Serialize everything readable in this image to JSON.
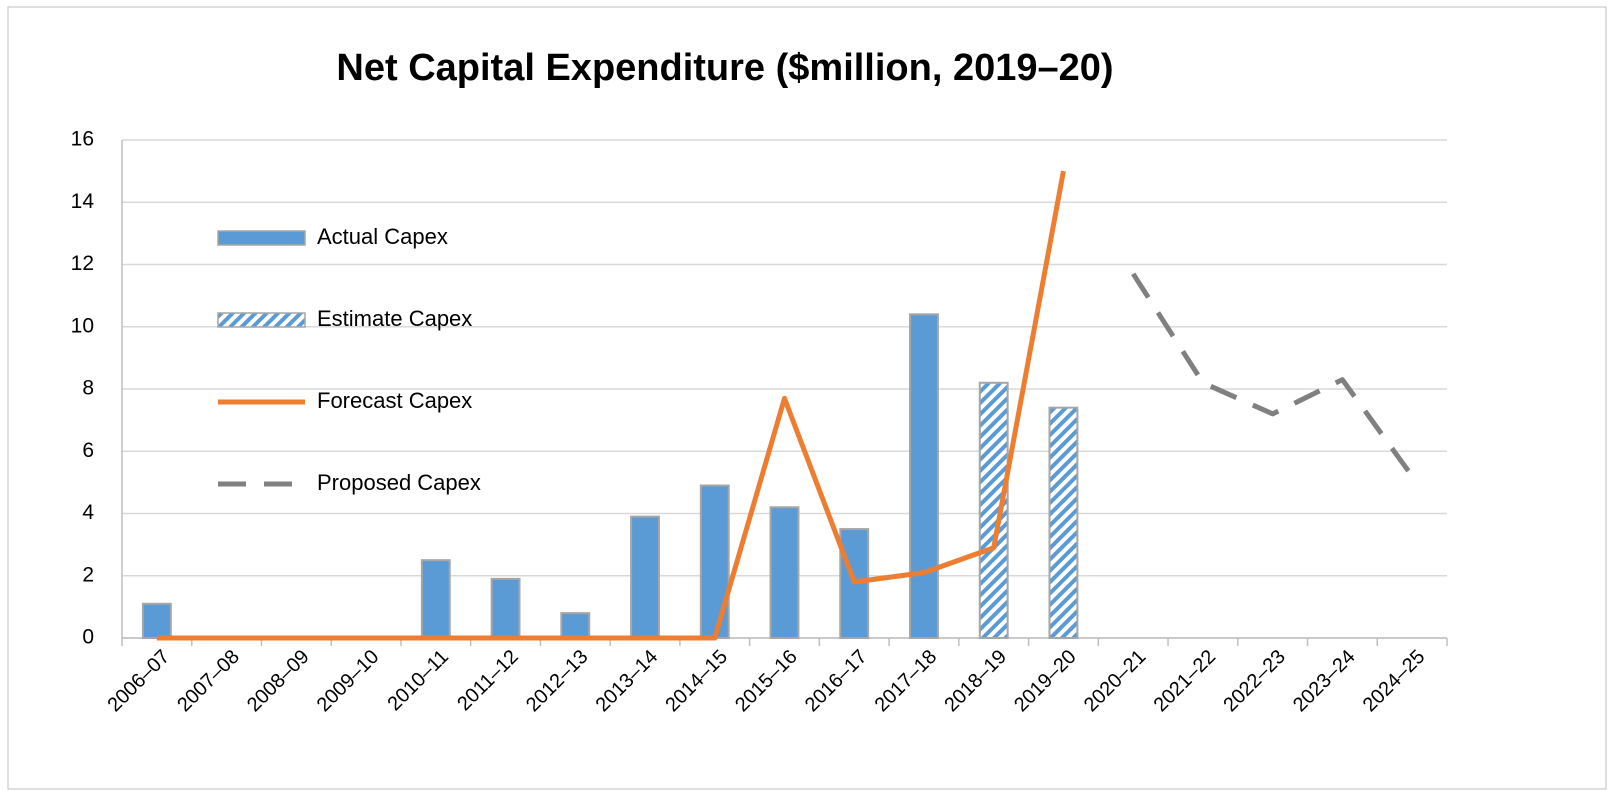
{
  "chart_data": {
    "type": "bar",
    "title": "Net Capital Expenditure ($million, 2019–20)",
    "categories": [
      "2006–07",
      "2007–08",
      "2008–09",
      "2009–10",
      "2010–11",
      "2011–12",
      "2012–13",
      "2013–14",
      "2014–15",
      "2015–16",
      "2016–17",
      "2017–18",
      "2018–19",
      "2019–20",
      "2020–21",
      "2021–22",
      "2022–23",
      "2023–24",
      "2024–25"
    ],
    "series": [
      {
        "name": "Actual Capex",
        "type": "bar",
        "color": "#5b9bd5",
        "values": [
          1.1,
          null,
          null,
          null,
          2.5,
          1.9,
          0.8,
          3.9,
          4.9,
          4.2,
          3.5,
          10.4,
          null,
          null,
          null,
          null,
          null,
          null,
          null
        ]
      },
      {
        "name": "Estimate Capex",
        "type": "bar",
        "hatched": true,
        "color": "#5b9bd5",
        "values": [
          null,
          null,
          null,
          null,
          null,
          null,
          null,
          null,
          null,
          null,
          null,
          null,
          8.2,
          7.4,
          null,
          null,
          null,
          null,
          null
        ]
      },
      {
        "name": "Forecast Capex",
        "type": "line",
        "color": "#ed7d31",
        "values": [
          0,
          0,
          0,
          0,
          0,
          0,
          0,
          0,
          0,
          7.7,
          1.8,
          2.1,
          2.9,
          15.0,
          null,
          null,
          null,
          null,
          null
        ]
      },
      {
        "name": "Proposed Capex",
        "type": "line",
        "dashed": true,
        "color": "#808080",
        "values": [
          null,
          null,
          null,
          null,
          null,
          null,
          null,
          null,
          null,
          null,
          null,
          null,
          null,
          null,
          11.7,
          8.2,
          7.2,
          8.3,
          5.2
        ]
      }
    ],
    "ylim": [
      0,
      16
    ],
    "yticks": [
      0,
      2,
      4,
      6,
      8,
      10,
      12,
      14,
      16
    ],
    "grid": true,
    "legend": "upper left"
  }
}
